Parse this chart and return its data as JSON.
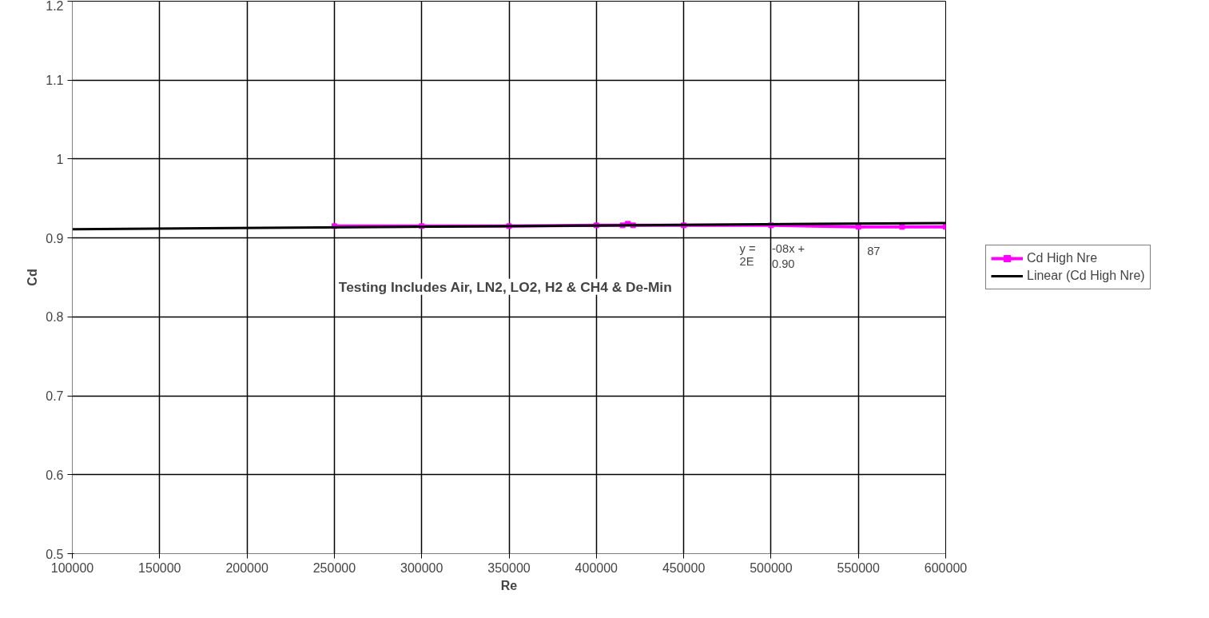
{
  "chart_data": {
    "type": "line",
    "xlabel": "Re",
    "ylabel": "Cd",
    "xlim": [
      100000,
      600000
    ],
    "ylim": [
      0.5,
      1.2
    ],
    "xticks": [
      100000,
      150000,
      200000,
      250000,
      300000,
      350000,
      400000,
      450000,
      500000,
      550000,
      600000
    ],
    "yticks": [
      0.5,
      0.6,
      0.7,
      0.8,
      0.9,
      1,
      1.1,
      1.2
    ],
    "grid": true,
    "legend": "right",
    "series": [
      {
        "name": "Cd High Nre",
        "color": "#ff00ff",
        "marker": "square",
        "x": [
          250000,
          300000,
          350000,
          400000,
          415000,
          418000,
          421000,
          450000,
          500000,
          550000,
          575000,
          600000
        ],
        "values": [
          0.915,
          0.915,
          0.915,
          0.916,
          0.916,
          0.918,
          0.916,
          0.916,
          0.916,
          0.914,
          0.914,
          0.914
        ]
      },
      {
        "name": "Linear (Cd High Nre)",
        "color": "#000000",
        "marker": "none",
        "x": [
          100000,
          600000
        ],
        "values": [
          0.911,
          0.919
        ]
      }
    ],
    "annotations": [
      "y =",
      "-08x +",
      "87",
      "2E",
      "0.90",
      "Testing Includes Air, LN2, LO2, H2 & CH4 & De-Min"
    ]
  }
}
